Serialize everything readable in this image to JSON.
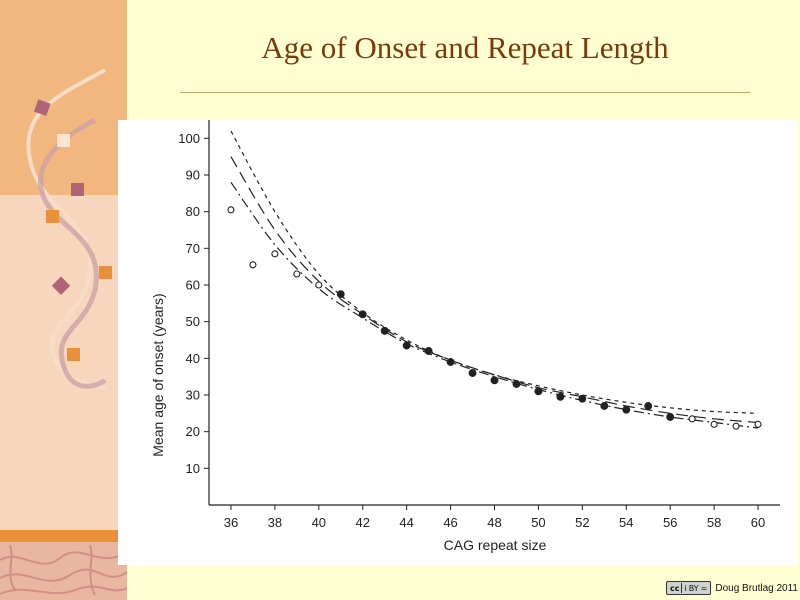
{
  "slide": {
    "title": "Age of Onset and Repeat Length",
    "credit": "Doug Brutlag 2011",
    "license_badge": {
      "left": "cc",
      "middle": "i",
      "right": "=",
      "sub": "BY"
    }
  },
  "colors": {
    "background": "#ffffd2",
    "title": "#7a3a0b",
    "sidebar_top": "#f2b77f",
    "sidebar_bottom": "#f6d7bd",
    "accent_orange": "#e8903a",
    "accent_mauve": "#b06475"
  },
  "chart_data": {
    "type": "scatter",
    "xlabel": "CAG repeat size",
    "ylabel": "Mean age of onset (years)",
    "xlim": [
      35,
      61
    ],
    "ylim": [
      0,
      105
    ],
    "xticks": [
      36,
      38,
      40,
      42,
      44,
      46,
      48,
      50,
      52,
      54,
      56,
      58,
      60
    ],
    "yticks": [
      10,
      20,
      30,
      40,
      50,
      60,
      70,
      80,
      90,
      100
    ],
    "grid": false,
    "series": [
      {
        "marker": "open",
        "points": [
          {
            "x": 36,
            "y": 80.5
          },
          {
            "x": 37,
            "y": 65.5
          },
          {
            "x": 38,
            "y": 68.5
          },
          {
            "x": 39,
            "y": 63
          },
          {
            "x": 40,
            "y": 60
          },
          {
            "x": 57,
            "y": 23.5
          },
          {
            "x": 58,
            "y": 22
          },
          {
            "x": 59,
            "y": 21.5
          },
          {
            "x": 60,
            "y": 22
          }
        ]
      },
      {
        "marker": "filled",
        "points": [
          {
            "x": 41,
            "y": 57.5
          },
          {
            "x": 42,
            "y": 52
          },
          {
            "x": 43,
            "y": 47.5
          },
          {
            "x": 44,
            "y": 43.5
          },
          {
            "x": 45,
            "y": 42
          },
          {
            "x": 46,
            "y": 39
          },
          {
            "x": 47,
            "y": 36
          },
          {
            "x": 48,
            "y": 34
          },
          {
            "x": 49,
            "y": 33
          },
          {
            "x": 50,
            "y": 31
          },
          {
            "x": 51,
            "y": 29.5
          },
          {
            "x": 52,
            "y": 29
          },
          {
            "x": 53,
            "y": 27
          },
          {
            "x": 54,
            "y": 26
          },
          {
            "x": 55,
            "y": 27
          },
          {
            "x": 56,
            "y": 24
          }
        ]
      }
    ],
    "curves": [
      {
        "style": "long-dash",
        "x": [
          36,
          38,
          40,
          42,
          44,
          46,
          48,
          50,
          52,
          54,
          56,
          58,
          60
        ],
        "y": [
          95,
          75,
          61,
          52,
          44.5,
          39.5,
          35.5,
          32,
          29.5,
          27,
          25,
          23.5,
          22.5
        ]
      },
      {
        "style": "short-dash",
        "x": [
          36,
          38,
          40,
          42,
          44,
          46,
          48,
          50,
          52,
          54,
          56,
          58,
          60
        ],
        "y": [
          102,
          80,
          63,
          52.5,
          45,
          39.5,
          35.5,
          32.5,
          30,
          28,
          26.5,
          25.5,
          25
        ]
      },
      {
        "style": "dash-dot",
        "x": [
          36,
          38,
          40,
          42,
          44,
          46,
          48,
          50,
          52,
          54,
          56,
          58,
          60
        ],
        "y": [
          88,
          71,
          59,
          51,
          44,
          39,
          35,
          31.5,
          28.5,
          26,
          24,
          22.5,
          21
        ]
      }
    ]
  }
}
